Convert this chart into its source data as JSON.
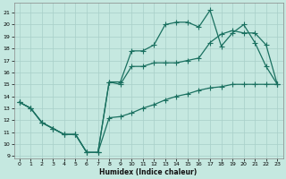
{
  "xlabel": "Humidex (Indice chaleur)",
  "bg_color": "#c5e8e0",
  "grid_color": "#a8cfc8",
  "line_color": "#1a7060",
  "xlim": [
    -0.5,
    23.5
  ],
  "ylim": [
    8.8,
    21.8
  ],
  "yticks": [
    9,
    10,
    11,
    12,
    13,
    14,
    15,
    16,
    17,
    18,
    19,
    20,
    21
  ],
  "xticks": [
    0,
    1,
    2,
    3,
    4,
    5,
    6,
    7,
    8,
    9,
    10,
    11,
    12,
    13,
    14,
    15,
    16,
    17,
    18,
    19,
    20,
    21,
    22,
    23
  ],
  "line1_x": [
    0,
    1,
    2,
    3,
    4,
    5,
    6,
    7,
    8,
    9,
    10,
    11,
    12,
    13,
    14,
    15,
    16,
    17,
    18,
    19,
    20,
    21,
    22,
    23
  ],
  "line1_y": [
    13.5,
    13.0,
    11.8,
    11.3,
    10.8,
    10.8,
    9.3,
    9.3,
    15.2,
    15.2,
    17.8,
    17.8,
    18.3,
    20.0,
    20.2,
    20.2,
    19.8,
    21.2,
    18.2,
    19.3,
    20.0,
    18.5,
    16.5,
    15.0
  ],
  "line2_x": [
    0,
    1,
    2,
    3,
    4,
    5,
    6,
    7,
    8,
    9,
    10,
    11,
    12,
    13,
    14,
    15,
    16,
    17,
    18,
    19,
    20,
    21,
    22,
    23
  ],
  "line2_y": [
    13.5,
    13.0,
    11.8,
    11.3,
    10.8,
    10.8,
    9.3,
    9.3,
    15.2,
    15.0,
    16.5,
    16.5,
    16.8,
    16.8,
    16.8,
    17.0,
    17.2,
    18.5,
    19.2,
    19.5,
    19.3,
    19.3,
    18.3,
    15.0
  ],
  "line3_x": [
    0,
    1,
    2,
    3,
    4,
    5,
    6,
    7,
    8,
    9,
    10,
    11,
    12,
    13,
    14,
    15,
    16,
    17,
    18,
    19,
    20,
    21,
    22,
    23
  ],
  "line3_y": [
    13.5,
    13.0,
    11.8,
    11.3,
    10.8,
    10.8,
    9.3,
    9.3,
    12.2,
    12.3,
    12.6,
    13.0,
    13.3,
    13.7,
    14.0,
    14.2,
    14.5,
    14.7,
    14.8,
    15.0,
    15.0,
    15.0,
    15.0,
    15.0
  ]
}
